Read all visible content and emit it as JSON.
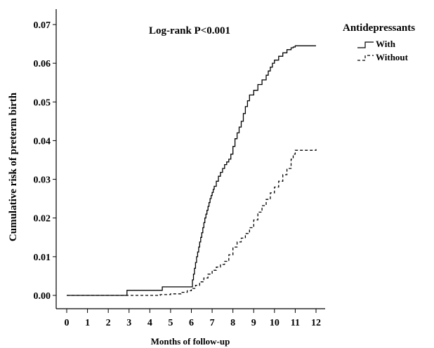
{
  "chart_data": {
    "type": "line",
    "title": "",
    "annotation": "Log-rank P<0.001",
    "xlabel": "Months of follow-up",
    "ylabel": "Cumulative risk of preterm birth",
    "xlim": [
      0,
      12
    ],
    "ylim": [
      0,
      0.07
    ],
    "xticks": [
      "0",
      "1",
      "2",
      "3",
      "4",
      "5",
      "6",
      "7",
      "8",
      "9",
      "10",
      "11",
      "12"
    ],
    "yticks": [
      "0.00",
      "0.01",
      "0.02",
      "0.03",
      "0.04",
      "0.05",
      "0.06",
      "0.07"
    ],
    "grid": false,
    "legend": {
      "title": "Antidepressants",
      "position": "top-right"
    },
    "series": [
      {
        "name": "With",
        "style": "solid",
        "color": "#000000",
        "x": [
          0,
          2.9,
          4.6,
          6.0,
          6.05,
          6.1,
          6.15,
          6.2,
          6.25,
          6.3,
          6.35,
          6.4,
          6.45,
          6.5,
          6.55,
          6.6,
          6.65,
          6.7,
          6.75,
          6.8,
          6.85,
          6.9,
          6.95,
          7.0,
          7.05,
          7.1,
          7.2,
          7.3,
          7.4,
          7.5,
          7.6,
          7.7,
          7.8,
          7.9,
          8.0,
          8.1,
          8.2,
          8.3,
          8.4,
          8.5,
          8.6,
          8.7,
          8.8,
          9.0,
          9.2,
          9.4,
          9.6,
          9.7,
          9.8,
          9.9,
          10.0,
          10.2,
          10.4,
          10.6,
          10.8,
          10.9,
          11.0,
          12.0
        ],
        "y": [
          0.0,
          0.0013,
          0.0022,
          0.0022,
          0.004,
          0.0055,
          0.007,
          0.0085,
          0.01,
          0.0112,
          0.0125,
          0.0138,
          0.015,
          0.0162,
          0.0175,
          0.0188,
          0.02,
          0.021,
          0.022,
          0.023,
          0.024,
          0.025,
          0.0258,
          0.0266,
          0.0274,
          0.0282,
          0.0295,
          0.0308,
          0.0318,
          0.0328,
          0.0338,
          0.0345,
          0.0352,
          0.0365,
          0.0385,
          0.0405,
          0.042,
          0.0435,
          0.045,
          0.047,
          0.0488,
          0.0503,
          0.0518,
          0.053,
          0.0545,
          0.0557,
          0.0569,
          0.058,
          0.059,
          0.06,
          0.0608,
          0.0618,
          0.0627,
          0.0635,
          0.064,
          0.0642,
          0.0645,
          0.0645
        ]
      },
      {
        "name": "Without",
        "style": "dashed",
        "color": "#000000",
        "x": [
          0,
          4.5,
          5.0,
          5.5,
          5.8,
          6.0,
          6.2,
          6.4,
          6.6,
          6.8,
          7.0,
          7.2,
          7.4,
          7.6,
          7.8,
          8.0,
          8.2,
          8.4,
          8.6,
          8.8,
          9.0,
          9.2,
          9.4,
          9.6,
          9.8,
          10.0,
          10.2,
          10.4,
          10.6,
          10.8,
          10.9,
          11.0,
          12.0
        ],
        "y": [
          0.0,
          0.0002,
          0.0004,
          0.0008,
          0.0012,
          0.0018,
          0.0026,
          0.0035,
          0.0045,
          0.0055,
          0.0065,
          0.0073,
          0.008,
          0.0088,
          0.0105,
          0.0125,
          0.0138,
          0.0148,
          0.016,
          0.0175,
          0.0195,
          0.0215,
          0.0232,
          0.0248,
          0.0265,
          0.028,
          0.0295,
          0.0312,
          0.0328,
          0.0352,
          0.0365,
          0.0375,
          0.0378
        ]
      }
    ]
  }
}
